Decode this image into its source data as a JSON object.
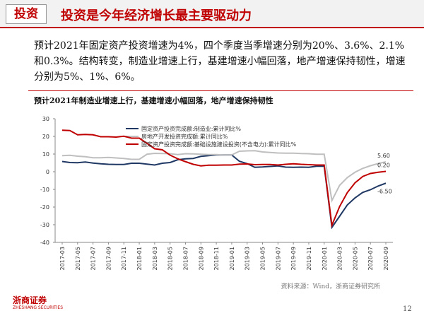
{
  "header": {
    "tag": "投资",
    "title": "投资是今年经济增长最主要驱动力"
  },
  "paragraph": "预计2021年固定资产投资增速为4%，四个季度当季增速分别为20%、3.6%、2.1%和0.3%。结构转变，制造业增速上行，基建增速小幅回落，地产增速保持韧性，增速分别为5%、1%、6%。",
  "source": "资料来源：Wind，浙商证券研究所",
  "logo": {
    "name": "浙商证券",
    "subtitle": "ZHESHANG SECURITIES"
  },
  "page_number": "12",
  "chart_data": {
    "type": "line",
    "title": "预计2021年制造业增速上行，基建增速小幅回落，地产增速保持韧性",
    "categories": [
      "2017-03",
      null,
      "2017-05",
      null,
      "2017-07",
      null,
      "2017-09",
      null,
      "2017-11",
      null,
      "2018-01",
      null,
      "2018-03",
      null,
      "2018-05",
      null,
      "2018-07",
      null,
      "2018-09",
      null,
      "2018-11",
      null,
      "2019-01",
      null,
      "2019-03",
      null,
      "2019-05",
      null,
      "2019-07",
      null,
      "2019-09",
      null,
      "2019-11",
      null,
      "2020-01",
      null,
      "2020-03",
      null,
      "2020-05",
      null,
      "2020-07",
      null,
      "2020-09"
    ],
    "ylim": [
      -40,
      30
    ],
    "yticks": [
      -40,
      -30,
      -20,
      -10,
      0,
      10,
      20,
      30
    ],
    "grid": false,
    "legend": "top",
    "series": [
      {
        "name": "固定资产投资完成额:制造业:累计同比%",
        "color": "#1f3864",
        "values": [
          5.8,
          5.2,
          5.1,
          5.5,
          4.9,
          4.5,
          4.2,
          4.1,
          4.1,
          4.8,
          4.8,
          4.3,
          3.8,
          4.8,
          5.2,
          6.8,
          7.3,
          7.5,
          8.7,
          9.1,
          9.5,
          9.5,
          9.5,
          5.9,
          4.6,
          2.5,
          2.7,
          3.0,
          3.3,
          2.6,
          2.5,
          2.6,
          2.5,
          3.1,
          3.1,
          -31.5,
          -25.2,
          -18.8,
          -14.8,
          -11.7,
          -10.2,
          -8.1,
          -6.5
        ],
        "value_labels": [
          null,
          null,
          null,
          null,
          null,
          null,
          null,
          null,
          null,
          null,
          null,
          null,
          null,
          null,
          null,
          null,
          null,
          null,
          null,
          null,
          null,
          null,
          null,
          null,
          null,
          null,
          null,
          null,
          null,
          null,
          null,
          null,
          null,
          null,
          null,
          null,
          null,
          null,
          null,
          null,
          null,
          null,
          "-6.50"
        ]
      },
      {
        "name": "房地产开发投资完成额:累计同比%",
        "color": "#bfbfbf",
        "values": [
          9.1,
          9.3,
          8.8,
          8.5,
          7.9,
          7.9,
          8.1,
          7.8,
          7.5,
          7.0,
          7.0,
          9.9,
          10.4,
          10.3,
          10.2,
          9.7,
          10.2,
          10.1,
          9.9,
          9.7,
          9.7,
          9.5,
          9.5,
          11.6,
          11.8,
          11.9,
          11.2,
          10.9,
          10.6,
          10.5,
          10.5,
          10.3,
          10.2,
          9.9,
          9.9,
          -16.3,
          -7.7,
          -3.3,
          -0.3,
          1.9,
          3.4,
          4.6,
          5.6
        ],
        "value_labels": [
          null,
          null,
          null,
          null,
          null,
          null,
          null,
          null,
          null,
          null,
          null,
          null,
          null,
          null,
          null,
          null,
          null,
          null,
          null,
          null,
          null,
          null,
          null,
          null,
          null,
          null,
          null,
          null,
          null,
          null,
          null,
          null,
          null,
          null,
          null,
          null,
          null,
          null,
          null,
          null,
          null,
          null,
          "5.60"
        ]
      },
      {
        "name": "固定资产投资完成额:基础设施建设投资(不含电力):累计同比%",
        "color": "#c00000",
        "values": [
          23.5,
          23.3,
          20.9,
          21.1,
          20.9,
          19.8,
          19.8,
          19.6,
          20.1,
          19.0,
          19.0,
          16.1,
          13.0,
          12.4,
          9.4,
          7.3,
          5.7,
          4.2,
          3.3,
          3.7,
          3.7,
          3.8,
          3.8,
          4.3,
          4.4,
          4.0,
          4.1,
          4.1,
          3.8,
          4.2,
          4.5,
          4.2,
          4.0,
          3.8,
          3.8,
          -30.3,
          -19.7,
          -11.8,
          -6.3,
          -2.7,
          -1.0,
          -0.3,
          0.2
        ],
        "value_labels": [
          null,
          null,
          null,
          null,
          null,
          null,
          null,
          null,
          null,
          null,
          null,
          null,
          null,
          null,
          null,
          null,
          null,
          null,
          null,
          null,
          null,
          null,
          null,
          null,
          null,
          null,
          null,
          null,
          null,
          null,
          null,
          null,
          null,
          null,
          null,
          null,
          null,
          null,
          null,
          null,
          null,
          null,
          "0.20"
        ]
      }
    ]
  }
}
